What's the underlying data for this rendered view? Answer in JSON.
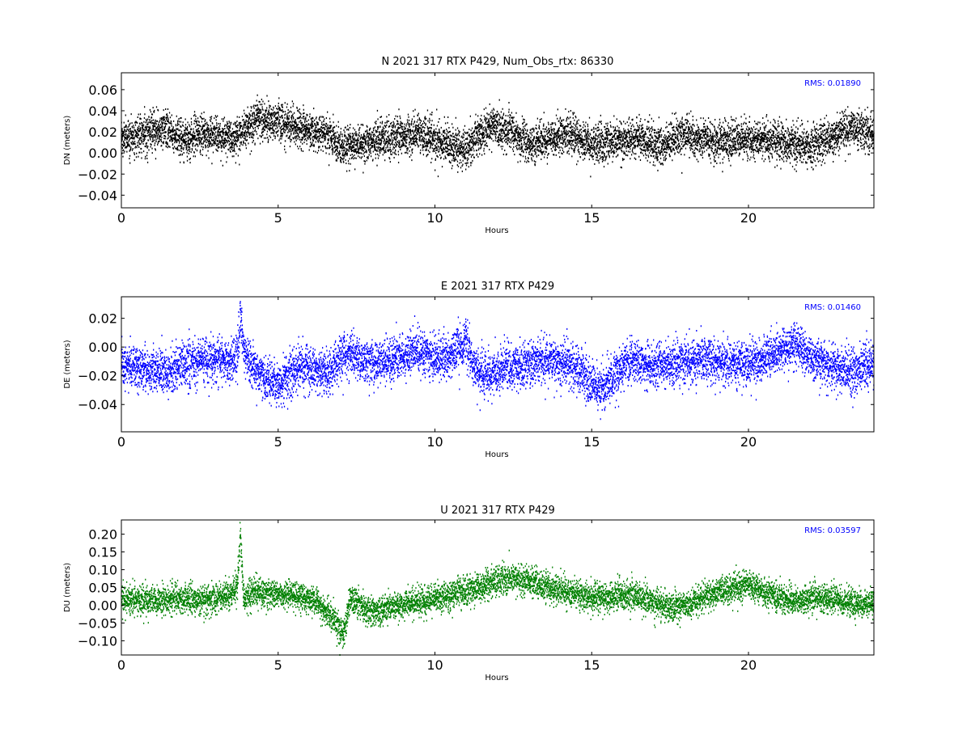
{
  "chart_data": [
    {
      "type": "scatter",
      "title": "N 2021 317 RTX  P429, Num_Obs_rtx: 86330",
      "xlabel": "Hours",
      "ylabel": "DN (meters)",
      "xlim": [
        0,
        24
      ],
      "ylim": [
        -0.052,
        0.076
      ],
      "xticks": [
        0,
        5,
        10,
        15,
        20
      ],
      "xtick_labels": [
        "0",
        "5",
        "10",
        "15",
        "20"
      ],
      "yticks": [
        -0.04,
        -0.02,
        0.0,
        0.02,
        0.04,
        0.06
      ],
      "ytick_labels": [
        "−0.04",
        "−0.02",
        "0.00",
        "0.02",
        "0.04",
        "0.06"
      ],
      "annotation": "RMS:  0.01890",
      "annotation_color": "#0000ff",
      "series_color": "#000000",
      "grid": false,
      "mean_trend": {
        "x": [
          0,
          0.5,
          1.0,
          1.5,
          2.0,
          2.5,
          3.0,
          3.5,
          3.8,
          4.2,
          4.6,
          5.0,
          5.4,
          5.8,
          6.2,
          6.6,
          7.0,
          7.4,
          7.8,
          8.2,
          8.6,
          9.0,
          9.4,
          9.8,
          10.2,
          10.6,
          11.0,
          11.4,
          11.8,
          12.2,
          12.6,
          13.0,
          13.5,
          14.0,
          14.5,
          15.0,
          15.5,
          16.0,
          16.5,
          17.0,
          17.5,
          18.0,
          18.5,
          19.0,
          19.5,
          20.0,
          20.5,
          21.0,
          21.5,
          22.0,
          22.5,
          23.0,
          23.5,
          24.0
        ],
        "y": [
          0.012,
          0.018,
          0.02,
          0.022,
          0.012,
          0.018,
          0.016,
          0.014,
          0.02,
          0.03,
          0.032,
          0.03,
          0.026,
          0.022,
          0.02,
          0.018,
          0.006,
          0.008,
          0.01,
          0.012,
          0.014,
          0.016,
          0.018,
          0.015,
          0.01,
          0.006,
          0.004,
          0.016,
          0.026,
          0.022,
          0.016,
          0.008,
          0.012,
          0.018,
          0.016,
          0.008,
          0.01,
          0.012,
          0.014,
          0.006,
          0.01,
          0.018,
          0.014,
          0.01,
          0.012,
          0.014,
          0.012,
          0.01,
          0.008,
          0.006,
          0.014,
          0.02,
          0.022,
          0.016
        ]
      },
      "scatter_sd": 0.009
    },
    {
      "type": "scatter",
      "title": "E 2021 317 RTX  P429",
      "xlabel": "Hours",
      "ylabel": "DE (meters)",
      "xlim": [
        0,
        24
      ],
      "ylim": [
        -0.059,
        0.035
      ],
      "xticks": [
        0,
        5,
        10,
        15,
        20
      ],
      "xtick_labels": [
        "0",
        "5",
        "10",
        "15",
        "20"
      ],
      "yticks": [
        -0.04,
        -0.02,
        0.0,
        0.02
      ],
      "ytick_labels": [
        "−0.04",
        "−0.02",
        "0.00",
        "0.02"
      ],
      "annotation": "RMS:  0.01460",
      "annotation_color": "#0000ff",
      "series_color": "#0000ff",
      "grid": false,
      "mean_trend": {
        "x": [
          0,
          0.5,
          1.0,
          1.5,
          2.0,
          2.5,
          3.0,
          3.5,
          3.7,
          3.8,
          3.9,
          4.2,
          4.6,
          5.0,
          5.4,
          5.8,
          6.2,
          6.6,
          7.0,
          7.4,
          7.8,
          8.2,
          8.6,
          9.0,
          9.4,
          9.8,
          10.2,
          10.6,
          10.9,
          11.0,
          11.2,
          11.6,
          12.0,
          12.5,
          13.0,
          13.5,
          14.0,
          14.5,
          15.0,
          15.3,
          15.6,
          16.0,
          16.5,
          17.0,
          17.5,
          18.0,
          18.5,
          19.0,
          19.5,
          20.0,
          20.5,
          21.0,
          21.5,
          22.0,
          22.5,
          23.0,
          23.5,
          24.0
        ],
        "y": [
          -0.012,
          -0.014,
          -0.016,
          -0.018,
          -0.012,
          -0.01,
          -0.008,
          -0.01,
          -0.006,
          0.018,
          -0.002,
          -0.016,
          -0.022,
          -0.026,
          -0.018,
          -0.014,
          -0.016,
          -0.018,
          -0.008,
          -0.006,
          -0.01,
          -0.012,
          -0.008,
          -0.006,
          -0.004,
          -0.006,
          -0.008,
          -0.004,
          0.0,
          0.006,
          -0.012,
          -0.02,
          -0.016,
          -0.014,
          -0.012,
          -0.008,
          -0.01,
          -0.014,
          -0.024,
          -0.03,
          -0.024,
          -0.012,
          -0.01,
          -0.014,
          -0.012,
          -0.01,
          -0.008,
          -0.012,
          -0.01,
          -0.012,
          -0.008,
          -0.004,
          0.002,
          -0.008,
          -0.012,
          -0.016,
          -0.016,
          -0.012
        ]
      },
      "scatter_sd": 0.0075
    },
    {
      "type": "scatter",
      "title": "U 2021 317 RTX  P429",
      "xlabel": "Hours",
      "ylabel": "DU (meters)",
      "xlim": [
        0,
        24
      ],
      "ylim": [
        -0.14,
        0.24
      ],
      "xticks": [
        0,
        5,
        10,
        15,
        20
      ],
      "xtick_labels": [
        "0",
        "5",
        "10",
        "15",
        "20"
      ],
      "yticks": [
        -0.1,
        -0.05,
        0.0,
        0.05,
        0.1,
        0.15,
        0.2
      ],
      "ytick_labels": [
        "−0.10",
        "−0.05",
        "0.00",
        "0.05",
        "0.10",
        "0.15",
        "0.20"
      ],
      "annotation": "RMS:  0.03597",
      "annotation_color": "#0000ff",
      "series_color": "#008000",
      "grid": false,
      "mean_trend": {
        "x": [
          0,
          0.5,
          1.0,
          1.5,
          2.0,
          2.5,
          3.0,
          3.5,
          3.7,
          3.8,
          3.9,
          4.2,
          4.6,
          5.0,
          5.4,
          5.8,
          6.2,
          6.6,
          6.9,
          7.1,
          7.3,
          7.6,
          8.0,
          8.5,
          9.0,
          9.5,
          10.0,
          10.5,
          11.0,
          11.5,
          12.0,
          12.5,
          13.0,
          13.5,
          14.0,
          14.5,
          15.0,
          15.5,
          16.0,
          16.5,
          17.0,
          17.5,
          18.0,
          18.5,
          19.0,
          19.5,
          20.0,
          20.5,
          21.0,
          21.5,
          22.0,
          22.5,
          23.0,
          23.5,
          24.0
        ],
        "y": [
          0.015,
          0.015,
          0.012,
          0.015,
          0.02,
          0.015,
          0.02,
          0.035,
          0.05,
          0.2,
          0.02,
          0.04,
          0.03,
          0.03,
          0.035,
          0.02,
          0.01,
          -0.02,
          -0.06,
          -0.08,
          0.02,
          0.0,
          -0.02,
          -0.01,
          0.0,
          0.01,
          0.02,
          0.03,
          0.04,
          0.05,
          0.07,
          0.075,
          0.07,
          0.05,
          0.04,
          0.03,
          0.02,
          0.02,
          0.03,
          0.02,
          0.01,
          -0.01,
          0.0,
          0.02,
          0.04,
          0.05,
          0.055,
          0.04,
          0.02,
          0.01,
          0.02,
          0.02,
          0.01,
          0.0,
          0.01
        ]
      },
      "scatter_sd": 0.02
    }
  ]
}
